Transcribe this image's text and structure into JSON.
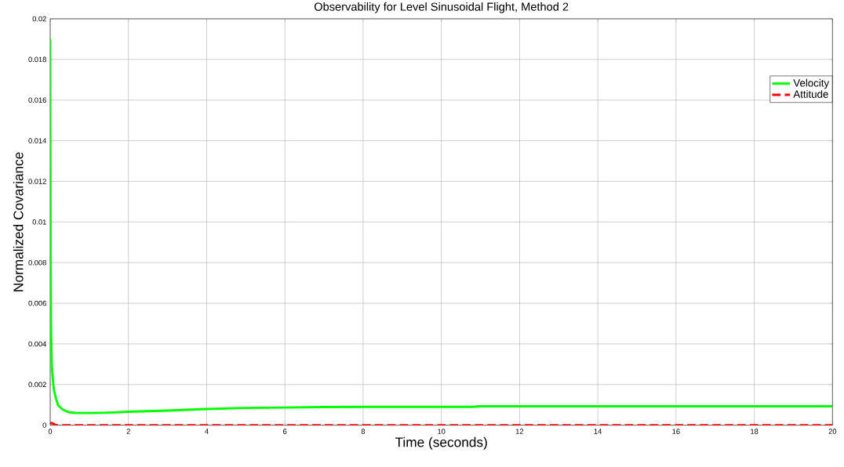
{
  "chart_data": {
    "type": "line",
    "title": "Observability for Level Sinusoidal Flight, Method 2",
    "xlabel": "Time (seconds)",
    "ylabel": "Normalized Covariance",
    "xlim": [
      0,
      20
    ],
    "ylim": [
      0,
      0.02
    ],
    "xticks": [
      0,
      2,
      4,
      6,
      8,
      10,
      12,
      14,
      16,
      18,
      20
    ],
    "yticks": [
      0,
      0.002,
      0.004,
      0.006,
      0.008,
      0.01,
      0.012,
      0.014,
      0.016,
      0.018,
      0.02
    ],
    "grid": true,
    "legend": "top right",
    "series": [
      {
        "name": "Velocity",
        "color": "#00ff00",
        "line_style": "solid",
        "x": [
          0,
          0.01,
          0.02,
          0.04,
          0.07,
          0.1,
          0.15,
          0.2,
          0.3,
          0.4,
          0.5,
          0.7,
          1,
          1.5,
          2,
          3,
          4,
          5,
          6,
          7,
          8,
          9,
          10,
          10.8,
          11,
          12,
          14,
          16,
          18,
          20
        ],
        "values": [
          0.019,
          0.009,
          0.005,
          0.003,
          0.0022,
          0.0017,
          0.0013,
          0.001,
          0.0008,
          0.0007,
          0.00063,
          0.0006,
          0.0006,
          0.00062,
          0.00066,
          0.00072,
          0.0008,
          0.00085,
          0.00087,
          0.00089,
          0.0009,
          0.0009,
          0.0009,
          0.0009,
          0.00093,
          0.00093,
          0.00093,
          0.00093,
          0.00093,
          0.00093
        ]
      },
      {
        "name": "Attitude",
        "color": "#ff0000",
        "line_style": "dashed",
        "x": [
          0,
          0.05,
          0.15,
          0.3,
          1,
          5,
          10,
          15,
          20
        ],
        "values": [
          0.0001,
          0.0001,
          0,
          0,
          0,
          0,
          0,
          0,
          0
        ]
      }
    ]
  }
}
